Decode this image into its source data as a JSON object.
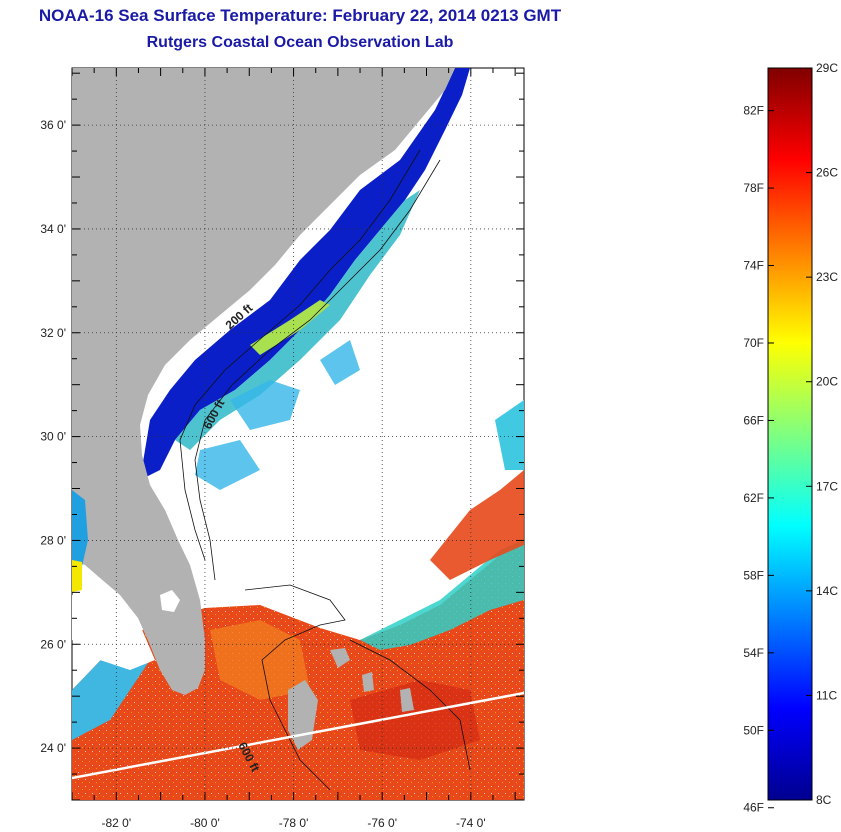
{
  "title": {
    "line1": "NOAA-16 Sea Surface Temperature:  February 22, 2014 0213 GMT",
    "line2": "Rutgers Coastal Ocean Observation Lab"
  },
  "map": {
    "lat_range": [
      23,
      37.1
    ],
    "lon_range": [
      -83,
      -72.8
    ],
    "lat_ticks": [
      {
        "value": 24,
        "label": "24 0'"
      },
      {
        "value": 26,
        "label": "26 0'"
      },
      {
        "value": 28,
        "label": "28 0'"
      },
      {
        "value": 30,
        "label": "30 0'"
      },
      {
        "value": 32,
        "label": "32 0'"
      },
      {
        "value": 34,
        "label": "34 0'"
      },
      {
        "value": 36,
        "label": "36 0'"
      }
    ],
    "lon_ticks": [
      {
        "value": -82,
        "label": "-82 0'"
      },
      {
        "value": -80,
        "label": "-80 0'"
      },
      {
        "value": -78,
        "label": "-78 0'"
      },
      {
        "value": -76,
        "label": "-76 0'"
      },
      {
        "value": -74,
        "label": "-74 0'"
      }
    ],
    "grid": "dotted",
    "contour_labels": [
      "200 ft",
      "600 ft",
      "600 ft"
    ],
    "colors": {
      "land": "#b2b2b2",
      "no_data": "#ffffff",
      "warm": "#e8481a",
      "cold": "#0a1fc8"
    }
  },
  "colorbar": {
    "fahrenheit_labels": [
      "82F",
      "78F",
      "74F",
      "70F",
      "66F",
      "62F",
      "58F",
      "54F",
      "50F",
      "46F"
    ],
    "celsius_labels": [
      "29C",
      "26C",
      "23C",
      "20C",
      "17C",
      "14C",
      "11C",
      "8C"
    ],
    "range_c": [
      8,
      29
    ],
    "colormap": "jet"
  }
}
